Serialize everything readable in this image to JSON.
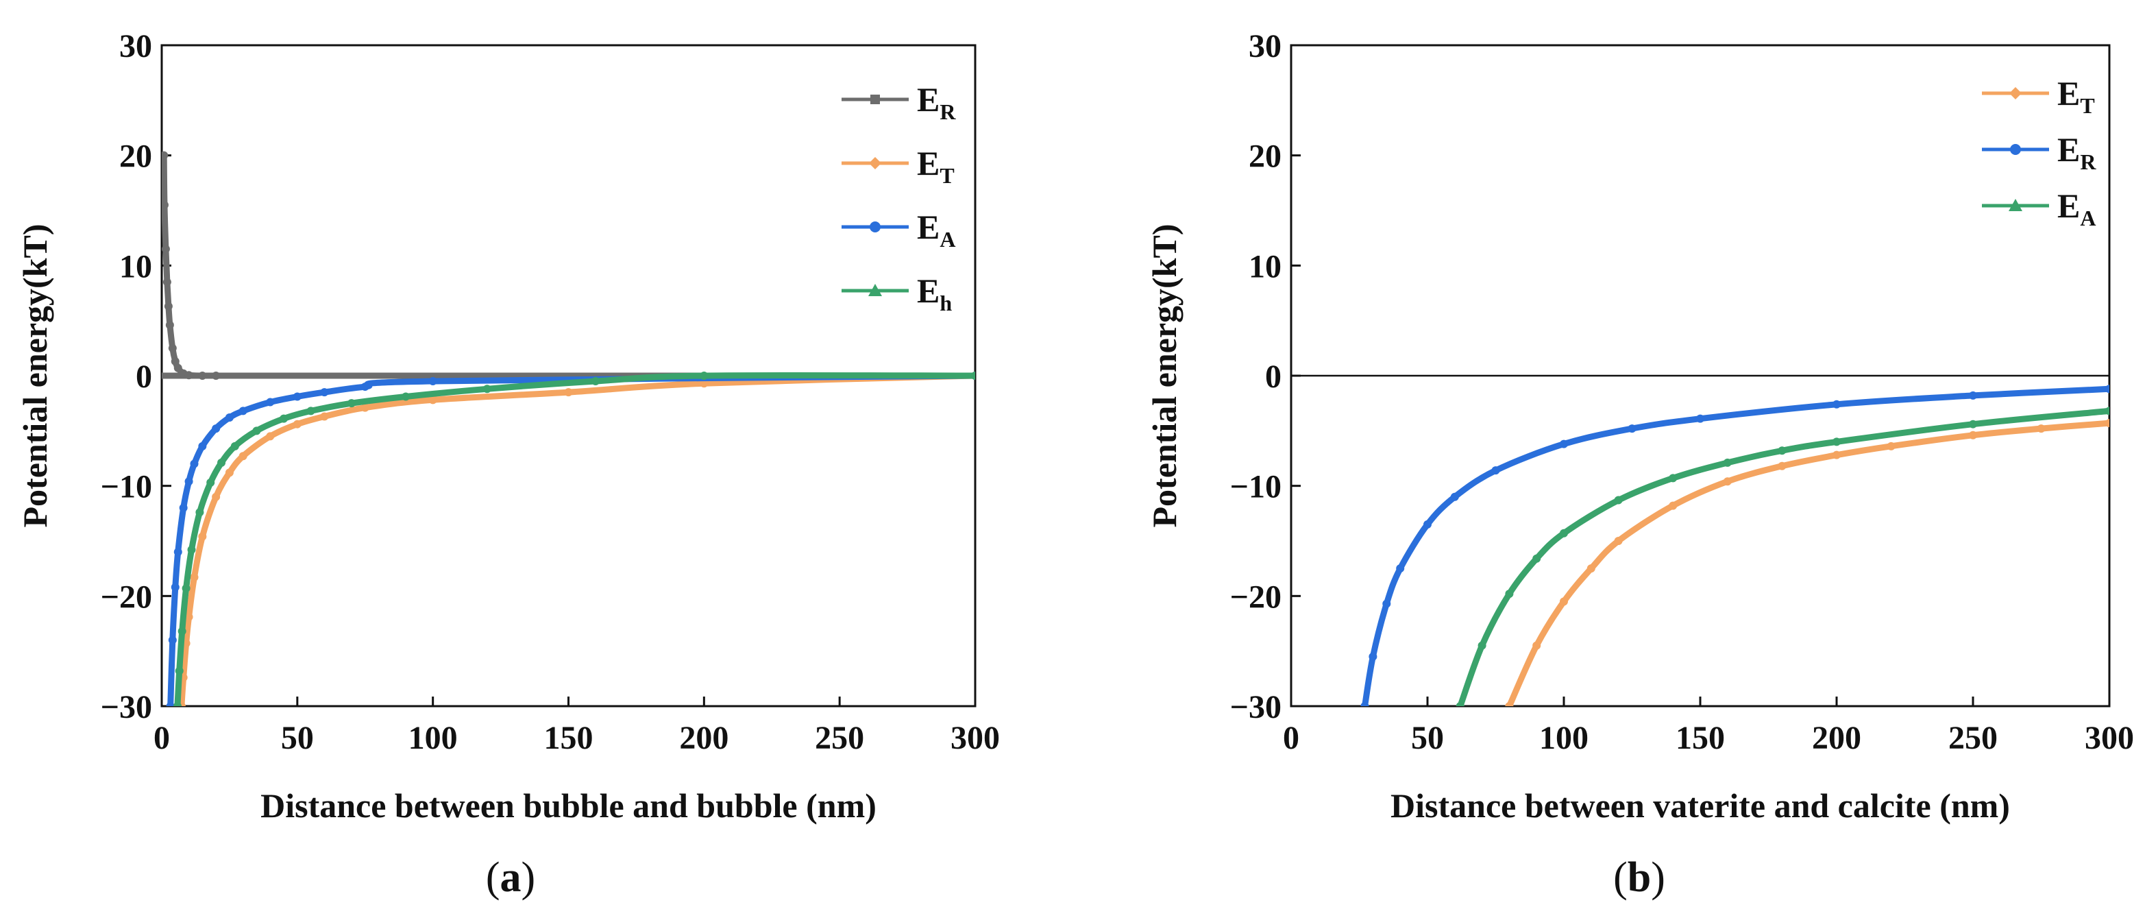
{
  "chart_data": [
    {
      "type": "line",
      "panel_label": "a",
      "xlabel": "Distance between bubble and bubble (nm)",
      "ylabel": "Potential energy(kT)",
      "xlim": [
        0,
        300
      ],
      "ylim": [
        -30,
        30
      ],
      "xticks": [
        0,
        50,
        100,
        150,
        200,
        250,
        300
      ],
      "yticks": [
        30,
        20,
        10,
        0,
        -10,
        -20,
        -30
      ],
      "ytick_labels": [
        "30",
        "20",
        "10",
        "0",
        "−10",
        "−20",
        "−30"
      ],
      "zero_line": false,
      "legend_position": "top-right",
      "series": [
        {
          "name": "E",
          "sub": "R",
          "color": "#6d6d6d",
          "marker": "square",
          "x": [
            0.8,
            1,
            1.5,
            2,
            2.5,
            3,
            4,
            5,
            6,
            8,
            10,
            15,
            20,
            300
          ],
          "y": [
            20,
            15.5,
            11.5,
            8.5,
            6.3,
            4.6,
            2.5,
            1.3,
            0.7,
            0.2,
            0.05,
            0,
            0,
            0
          ]
        },
        {
          "name": "E",
          "sub": "T",
          "color": "#f4a460",
          "marker": "diamond",
          "x": [
            7.3,
            8,
            9,
            10,
            12,
            15,
            20,
            25,
            30,
            40,
            50,
            60,
            75,
            100,
            150,
            200,
            300
          ],
          "y": [
            -30,
            -27.4,
            -24.3,
            -21.9,
            -18.3,
            -14.6,
            -11,
            -8.8,
            -7.3,
            -5.5,
            -4.4,
            -3.7,
            -2.9,
            -2.2,
            -1.5,
            -0.7,
            0
          ]
        },
        {
          "name": "E",
          "sub": "A",
          "color": "#2a6fdb",
          "marker": "circle",
          "x": [
            3.2,
            4,
            5,
            6,
            8,
            10,
            12,
            15,
            20,
            25,
            30,
            40,
            50,
            60,
            75,
            100,
            300
          ],
          "y": [
            -30,
            -24,
            -19.2,
            -16,
            -12,
            -9.6,
            -8,
            -6.4,
            -4.8,
            -3.8,
            -3.2,
            -2.4,
            -1.9,
            -1.5,
            -1,
            -0.5,
            0
          ]
        },
        {
          "name": "E",
          "sub": "h",
          "color": "#3aa36b",
          "marker": "triangle",
          "x": [
            5.8,
            6.5,
            7.5,
            9,
            11,
            14,
            18,
            22,
            27,
            35,
            45,
            55,
            70,
            90,
            120,
            160,
            200,
            300
          ],
          "y": [
            -30,
            -26.8,
            -23.2,
            -19.3,
            -15.8,
            -12.4,
            -9.7,
            -7.9,
            -6.4,
            -5,
            -3.9,
            -3.2,
            -2.5,
            -1.9,
            -1.2,
            -0.5,
            0,
            0
          ]
        }
      ]
    },
    {
      "type": "line",
      "panel_label": "b",
      "xlabel": "Distance between vaterite and calcite (nm)",
      "ylabel": "Potential energy(kT)",
      "xlim": [
        0,
        300
      ],
      "ylim": [
        -30,
        30
      ],
      "xticks": [
        0,
        50,
        100,
        150,
        200,
        250,
        300
      ],
      "yticks": [
        30,
        20,
        10,
        0,
        -10,
        -20,
        -30
      ],
      "ytick_labels": [
        "30",
        "20",
        "10",
        "0",
        "−10",
        "−20",
        "−30"
      ],
      "zero_line": true,
      "legend_position": "top-right",
      "series": [
        {
          "name": "E",
          "sub": "T",
          "color": "#f4a460",
          "marker": "diamond",
          "x": [
            80,
            90,
            100,
            110,
            120,
            140,
            160,
            180,
            200,
            220,
            250,
            275,
            300
          ],
          "y": [
            -30,
            -24.5,
            -20.5,
            -17.5,
            -15,
            -11.8,
            -9.6,
            -8.2,
            -7.2,
            -6.4,
            -5.4,
            -4.8,
            -4.3
          ]
        },
        {
          "name": "E",
          "sub": "R",
          "color": "#2a6fdb",
          "marker": "circle",
          "x": [
            27,
            30,
            35,
            40,
            50,
            60,
            75,
            100,
            125,
            150,
            200,
            250,
            300
          ],
          "y": [
            -30,
            -25.5,
            -20.7,
            -17.5,
            -13.5,
            -11,
            -8.6,
            -6.2,
            -4.8,
            -3.9,
            -2.6,
            -1.8,
            -1.2
          ]
        },
        {
          "name": "E",
          "sub": "A",
          "color": "#3aa36b",
          "marker": "triangle",
          "x": [
            62,
            70,
            80,
            90,
            100,
            120,
            140,
            160,
            180,
            200,
            250,
            300
          ],
          "y": [
            -30,
            -24.5,
            -19.8,
            -16.6,
            -14.3,
            -11.3,
            -9.3,
            -7.9,
            -6.8,
            -6,
            -4.4,
            -3.2
          ]
        }
      ]
    }
  ]
}
